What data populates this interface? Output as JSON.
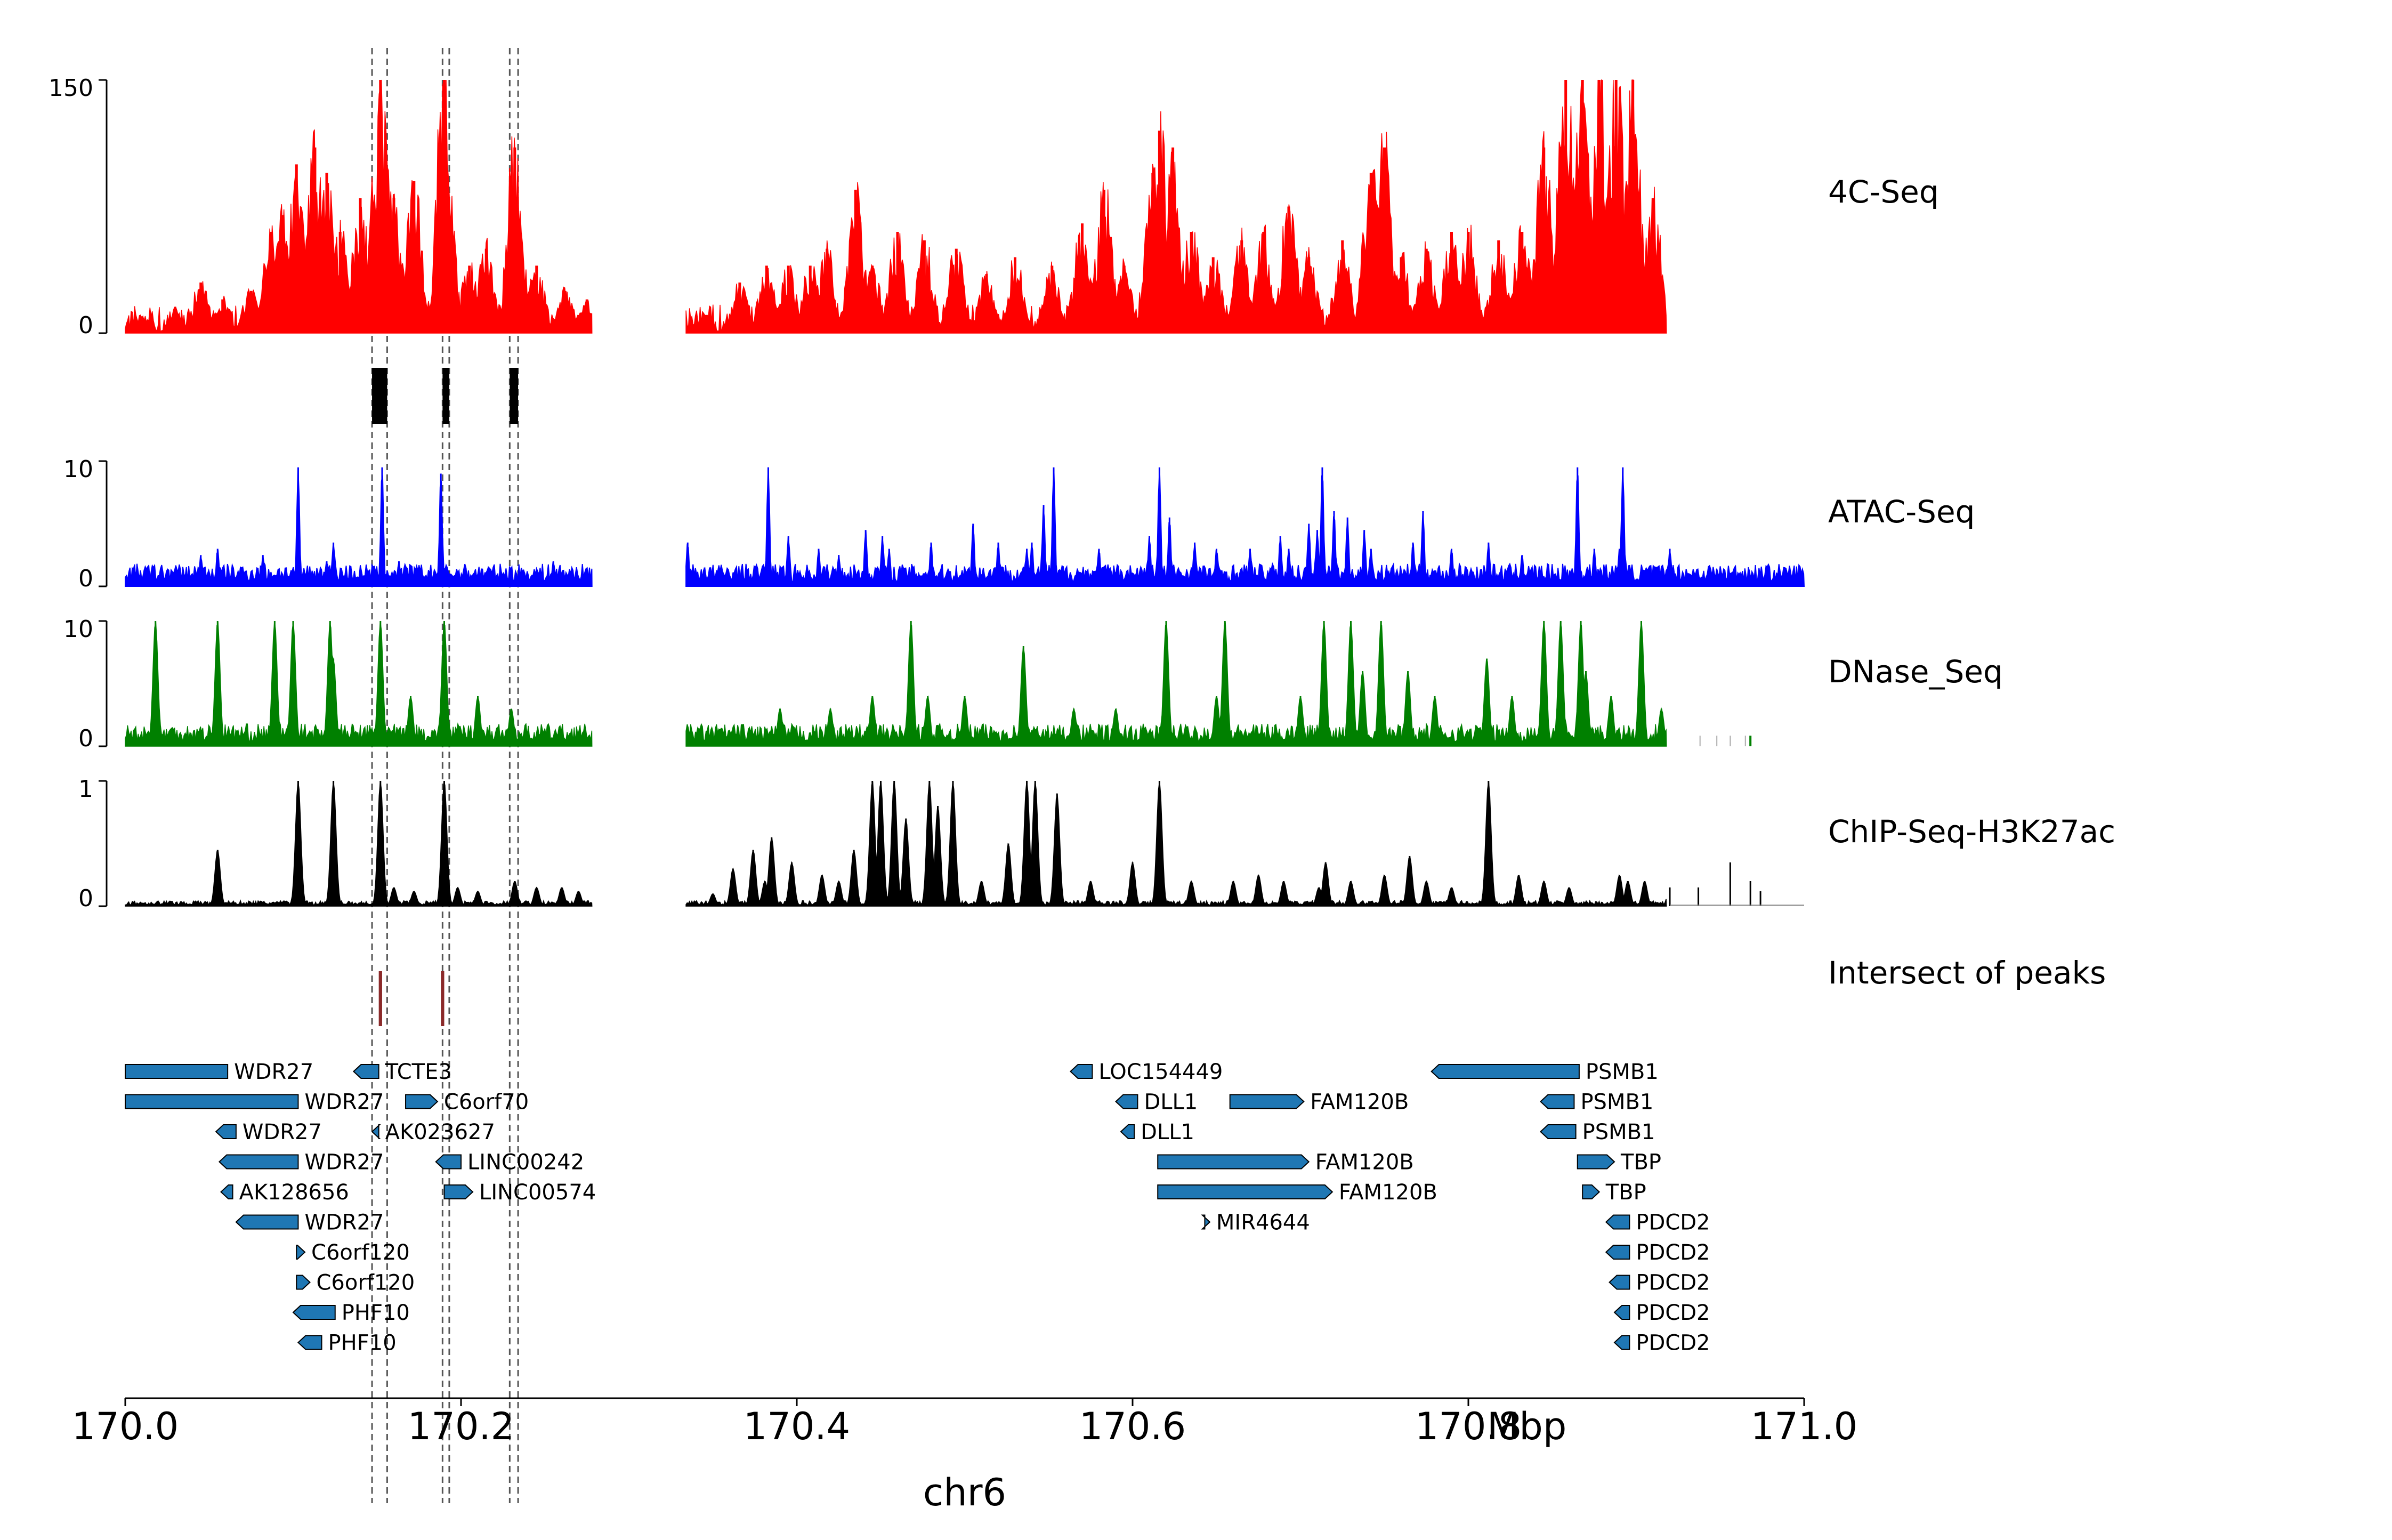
{
  "chart_data": {
    "type": "genome-tracks",
    "xlabel": "chr6",
    "x_unit": "Mbp",
    "xlim": [
      170.0,
      171.0
    ],
    "x_ticks": [
      "170.0",
      "170.2",
      "170.4",
      "170.6",
      "170.8",
      "171.0"
    ],
    "gap": [
      170.278,
      170.334
    ],
    "highlight_regions": [
      [
        170.147,
        170.156
      ],
      [
        170.189,
        170.193
      ],
      [
        170.229,
        170.234
      ]
    ],
    "tracks": [
      {
        "name": "4C-Seq",
        "kind": "signal",
        "color": "#ff0000",
        "ylim": [
          0,
          150
        ],
        "y_ticks": [
          "0",
          "150"
        ],
        "peaks": [
          [
            170.01,
            10
          ],
          [
            170.03,
            10
          ],
          [
            170.045,
            30
          ],
          [
            170.058,
            20
          ],
          [
            170.075,
            25
          ],
          [
            170.087,
            60
          ],
          [
            170.094,
            70
          ],
          [
            170.102,
            100
          ],
          [
            170.113,
            110
          ],
          [
            170.12,
            95
          ],
          [
            170.128,
            60
          ],
          [
            170.14,
            80
          ],
          [
            170.152,
            150
          ],
          [
            170.16,
            80
          ],
          [
            170.172,
            90
          ],
          [
            170.19,
            150
          ],
          [
            170.205,
            40
          ],
          [
            170.215,
            50
          ],
          [
            170.232,
            110
          ],
          [
            170.245,
            40
          ],
          [
            170.262,
            25
          ],
          [
            170.275,
            20
          ],
          [
            170.345,
            10
          ],
          [
            170.366,
            30
          ],
          [
            170.382,
            40
          ],
          [
            170.395,
            40
          ],
          [
            170.408,
            40
          ],
          [
            170.418,
            50
          ],
          [
            170.435,
            85
          ],
          [
            170.445,
            40
          ],
          [
            170.46,
            60
          ],
          [
            170.476,
            55
          ],
          [
            170.495,
            50
          ],
          [
            170.513,
            35
          ],
          [
            170.53,
            45
          ],
          [
            170.552,
            40
          ],
          [
            170.57,
            65
          ],
          [
            170.583,
            85
          ],
          [
            170.595,
            40
          ],
          [
            170.612,
            95
          ],
          [
            170.616,
            120
          ],
          [
            170.624,
            110
          ],
          [
            170.635,
            60
          ],
          [
            170.648,
            45
          ],
          [
            170.665,
            55
          ],
          [
            170.678,
            60
          ],
          [
            170.693,
            75
          ],
          [
            170.705,
            45
          ],
          [
            170.725,
            55
          ],
          [
            170.742,
            95
          ],
          [
            170.75,
            110
          ],
          [
            170.76,
            45
          ],
          [
            170.775,
            50
          ],
          [
            170.79,
            60
          ],
          [
            170.8,
            60
          ],
          [
            170.818,
            55
          ],
          [
            170.832,
            60
          ],
          [
            170.845,
            110
          ],
          [
            170.858,
            150
          ],
          [
            170.868,
            150
          ],
          [
            170.878,
            150
          ],
          [
            170.888,
            150
          ],
          [
            170.898,
            150
          ],
          [
            170.91,
            80
          ]
        ]
      },
      {
        "name": "",
        "kind": "bed",
        "color": "#000000",
        "regions": [
          [
            170.147,
            170.156
          ],
          [
            170.189,
            170.193
          ],
          [
            170.229,
            170.234
          ]
        ]
      },
      {
        "name": "ATAC-Seq",
        "kind": "signal",
        "color": "#0000ff",
        "ylim": [
          0,
          10
        ],
        "y_ticks": [
          "0",
          "10"
        ],
        "peaks": [
          [
            170.045,
            2.5
          ],
          [
            170.055,
            3.0
          ],
          [
            170.082,
            2.5
          ],
          [
            170.103,
            9.5
          ],
          [
            170.12,
            2.0
          ],
          [
            170.124,
            3.5
          ],
          [
            170.153,
            9.5
          ],
          [
            170.163,
            2.0
          ],
          [
            170.188,
            9.0
          ],
          [
            170.255,
            2.0
          ],
          [
            170.335,
            3.5
          ],
          [
            170.345,
            1.5
          ],
          [
            170.383,
            9.5
          ],
          [
            170.395,
            4.0
          ],
          [
            170.413,
            3.0
          ],
          [
            170.425,
            2.5
          ],
          [
            170.441,
            4.5
          ],
          [
            170.451,
            4.0
          ],
          [
            170.455,
            3.0
          ],
          [
            170.48,
            3.5
          ],
          [
            170.505,
            5.0
          ],
          [
            170.52,
            3.5
          ],
          [
            170.537,
            3.0
          ],
          [
            170.54,
            3.5
          ],
          [
            170.547,
            6.5
          ],
          [
            170.553,
            9.5
          ],
          [
            170.58,
            3.0
          ],
          [
            170.61,
            4.0
          ],
          [
            170.616,
            9.5
          ],
          [
            170.622,
            5.5
          ],
          [
            170.637,
            3.5
          ],
          [
            170.65,
            3.0
          ],
          [
            170.67,
            3.0
          ],
          [
            170.688,
            4.0
          ],
          [
            170.693,
            3.0
          ],
          [
            170.705,
            5.0
          ],
          [
            170.71,
            4.5
          ],
          [
            170.713,
            9.5
          ],
          [
            170.72,
            6.0
          ],
          [
            170.728,
            5.5
          ],
          [
            170.738,
            4.5
          ],
          [
            170.742,
            3.0
          ],
          [
            170.767,
            3.5
          ],
          [
            170.773,
            6.0
          ],
          [
            170.79,
            3.0
          ],
          [
            170.812,
            3.5
          ],
          [
            170.832,
            2.5
          ],
          [
            170.865,
            9.5
          ],
          [
            170.875,
            3.0
          ],
          [
            170.89,
            3.0
          ],
          [
            170.892,
            9.5
          ],
          [
            170.92,
            3.0
          ]
        ]
      },
      {
        "name": "DNase_Seq",
        "kind": "signal",
        "color": "#008000",
        "ylim": [
          0,
          10
        ],
        "y_ticks": [
          "0",
          "10"
        ],
        "peaks": [
          [
            170.018,
            10
          ],
          [
            170.055,
            10
          ],
          [
            170.089,
            10
          ],
          [
            170.1,
            10
          ],
          [
            170.122,
            10
          ],
          [
            170.124,
            7
          ],
          [
            170.152,
            10
          ],
          [
            170.17,
            4
          ],
          [
            170.19,
            10
          ],
          [
            170.21,
            4
          ],
          [
            170.23,
            3
          ],
          [
            170.39,
            3
          ],
          [
            170.42,
            3
          ],
          [
            170.445,
            4
          ],
          [
            170.468,
            10
          ],
          [
            170.478,
            4
          ],
          [
            170.5,
            4
          ],
          [
            170.535,
            8
          ],
          [
            170.565,
            3
          ],
          [
            170.59,
            3
          ],
          [
            170.62,
            10
          ],
          [
            170.65,
            4
          ],
          [
            170.655,
            10
          ],
          [
            170.7,
            4
          ],
          [
            170.714,
            10
          ],
          [
            170.73,
            10
          ],
          [
            170.737,
            6
          ],
          [
            170.748,
            10
          ],
          [
            170.764,
            6
          ],
          [
            170.78,
            4
          ],
          [
            170.811,
            7
          ],
          [
            170.826,
            4
          ],
          [
            170.845,
            10
          ],
          [
            170.855,
            10
          ],
          [
            170.867,
            10
          ],
          [
            170.87,
            6
          ],
          [
            170.885,
            4
          ],
          [
            170.903,
            10
          ],
          [
            170.915,
            3
          ]
        ]
      },
      {
        "name": "ChIP-Seq-H3K27ac",
        "kind": "signal",
        "color": "#000000",
        "ylim": [
          0,
          1
        ],
        "y_ticks": [
          "0",
          "1"
        ],
        "peaks": [
          [
            170.055,
            0.45
          ],
          [
            170.103,
            1.0
          ],
          [
            170.124,
            1.0
          ],
          [
            170.152,
            1.0
          ],
          [
            170.16,
            0.15
          ],
          [
            170.172,
            0.12
          ],
          [
            170.19,
            1.0
          ],
          [
            170.198,
            0.15
          ],
          [
            170.21,
            0.12
          ],
          [
            170.232,
            0.2
          ],
          [
            170.245,
            0.15
          ],
          [
            170.26,
            0.15
          ],
          [
            170.27,
            0.12
          ],
          [
            170.35,
            0.1
          ],
          [
            170.362,
            0.3
          ],
          [
            170.374,
            0.45
          ],
          [
            170.381,
            0.2
          ],
          [
            170.385,
            0.55
          ],
          [
            170.397,
            0.35
          ],
          [
            170.415,
            0.25
          ],
          [
            170.425,
            0.2
          ],
          [
            170.434,
            0.45
          ],
          [
            170.445,
            1.0
          ],
          [
            170.45,
            1.0
          ],
          [
            170.458,
            1.0
          ],
          [
            170.465,
            0.7
          ],
          [
            170.479,
            1.0
          ],
          [
            170.484,
            0.8
          ],
          [
            170.493,
            1.0
          ],
          [
            170.51,
            0.2
          ],
          [
            170.526,
            0.5
          ],
          [
            170.537,
            1.0
          ],
          [
            170.542,
            1.0
          ],
          [
            170.555,
            0.9
          ],
          [
            170.575,
            0.2
          ],
          [
            170.6,
            0.35
          ],
          [
            170.616,
            1.0
          ],
          [
            170.635,
            0.2
          ],
          [
            170.66,
            0.2
          ],
          [
            170.675,
            0.25
          ],
          [
            170.69,
            0.2
          ],
          [
            170.711,
            0.15
          ],
          [
            170.715,
            0.35
          ],
          [
            170.73,
            0.2
          ],
          [
            170.75,
            0.25
          ],
          [
            170.765,
            0.4
          ],
          [
            170.775,
            0.2
          ],
          [
            170.79,
            0.15
          ],
          [
            170.812,
            1.0
          ],
          [
            170.83,
            0.25
          ],
          [
            170.845,
            0.2
          ],
          [
            170.86,
            0.15
          ],
          [
            170.89,
            0.25
          ],
          [
            170.895,
            0.2
          ],
          [
            170.905,
            0.2
          ],
          [
            170.92,
            0.15
          ],
          [
            170.937,
            0.15
          ],
          [
            170.956,
            0.35
          ],
          [
            170.968,
            0.2
          ],
          [
            170.974,
            0.12
          ]
        ]
      },
      {
        "name": "Intersect of peaks",
        "kind": "bed",
        "color": "#8b2a2a",
        "regions": [
          [
            170.151,
            170.153
          ],
          [
            170.188,
            170.19
          ]
        ]
      }
    ],
    "genes": [
      {
        "name": "WDR27",
        "row": 0,
        "start": 170.0,
        "end": 170.061,
        "strand": "none"
      },
      {
        "name": "WDR27",
        "row": 1,
        "start": 170.0,
        "end": 170.103,
        "strand": "none"
      },
      {
        "name": "WDR27",
        "row": 2,
        "start": 170.054,
        "end": 170.066,
        "strand": "-"
      },
      {
        "name": "WDR27",
        "row": 3,
        "start": 170.056,
        "end": 170.103,
        "strand": "-"
      },
      {
        "name": "AK128656",
        "row": 4,
        "start": 170.057,
        "end": 170.064,
        "strand": "-"
      },
      {
        "name": "WDR27",
        "row": 5,
        "start": 170.066,
        "end": 170.103,
        "strand": "-"
      },
      {
        "name": "C6orf120",
        "row": 6,
        "start": 170.102,
        "end": 170.107,
        "strand": "+"
      },
      {
        "name": "C6orf120",
        "row": 7,
        "start": 170.102,
        "end": 170.11,
        "strand": "+"
      },
      {
        "name": "PHF10",
        "row": 8,
        "start": 170.1,
        "end": 170.125,
        "strand": "-"
      },
      {
        "name": "PHF10",
        "row": 9,
        "start": 170.103,
        "end": 170.117,
        "strand": "-"
      },
      {
        "name": "TCTE3",
        "row": 0,
        "start": 170.136,
        "end": 170.151,
        "strand": "-"
      },
      {
        "name": "C6orf70",
        "row": 1,
        "start": 170.167,
        "end": 170.186,
        "strand": "+"
      },
      {
        "name": "AK023627",
        "row": 2,
        "start": 170.147,
        "end": 170.151,
        "strand": "-"
      },
      {
        "name": "LINC00242",
        "row": 3,
        "start": 170.185,
        "end": 170.2,
        "strand": "-"
      },
      {
        "name": "LINC00574",
        "row": 4,
        "start": 170.19,
        "end": 170.207,
        "strand": "+"
      },
      {
        "name": "LOC154449",
        "row": 0,
        "start": 170.563,
        "end": 170.576,
        "strand": "-"
      },
      {
        "name": "DLL1",
        "row": 1,
        "start": 170.59,
        "end": 170.603,
        "strand": "-"
      },
      {
        "name": "DLL1",
        "row": 2,
        "start": 170.593,
        "end": 170.601,
        "strand": "-"
      },
      {
        "name": "FAM120B",
        "row": 1,
        "start": 170.658,
        "end": 170.702,
        "strand": "+"
      },
      {
        "name": "FAM120B",
        "row": 3,
        "start": 170.615,
        "end": 170.705,
        "strand": "+"
      },
      {
        "name": "FAM120B",
        "row": 4,
        "start": 170.615,
        "end": 170.719,
        "strand": "+"
      },
      {
        "name": "MIR4644",
        "row": 5,
        "start": 170.643,
        "end": 170.646,
        "strand": "+"
      },
      {
        "name": "PSMB1",
        "row": 0,
        "start": 170.778,
        "end": 170.866,
        "strand": "-"
      },
      {
        "name": "PSMB1",
        "row": 1,
        "start": 170.843,
        "end": 170.863,
        "strand": "-"
      },
      {
        "name": "PSMB1",
        "row": 2,
        "start": 170.843,
        "end": 170.864,
        "strand": "-"
      },
      {
        "name": "TBP",
        "row": 3,
        "start": 170.865,
        "end": 170.887,
        "strand": "+"
      },
      {
        "name": "TBP",
        "row": 4,
        "start": 170.868,
        "end": 170.878,
        "strand": "+"
      },
      {
        "name": "PDCD2",
        "row": 5,
        "start": 170.882,
        "end": 170.896,
        "strand": "-"
      },
      {
        "name": "PDCD2",
        "row": 6,
        "start": 170.882,
        "end": 170.896,
        "strand": "-"
      },
      {
        "name": "PDCD2",
        "row": 7,
        "start": 170.884,
        "end": 170.896,
        "strand": "-"
      },
      {
        "name": "PDCD2",
        "row": 8,
        "start": 170.887,
        "end": 170.896,
        "strand": "-"
      },
      {
        "name": "PDCD2",
        "row": 9,
        "start": 170.887,
        "end": 170.896,
        "strand": "-"
      }
    ],
    "gene_color": "#1f77b4"
  }
}
